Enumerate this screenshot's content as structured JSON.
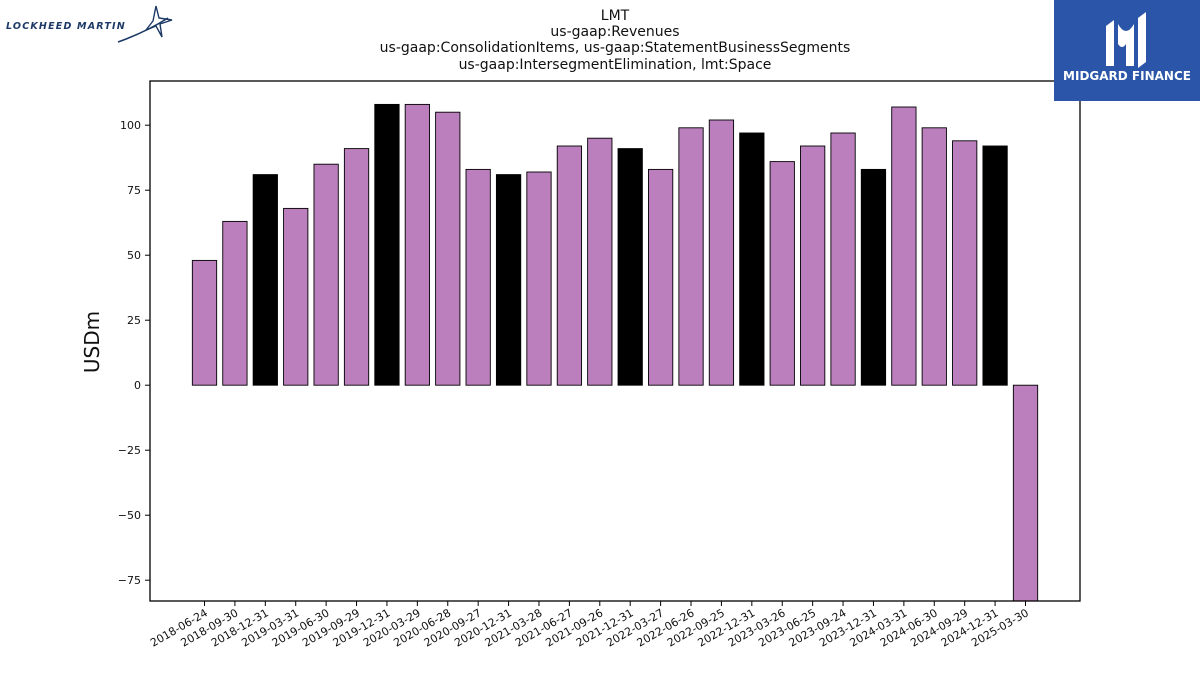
{
  "branding": {
    "left_logo_text": "LOCKHEED MARTIN",
    "left_logo_icon": "star-swoosh-icon",
    "right_logo_text": "MIDGARD FINANCE",
    "right_logo_icon": "midgard-m-icon",
    "right_logo_bg": "#2b55a8"
  },
  "chart_data": {
    "type": "bar",
    "title_lines": [
      "LMT",
      "us-gaap:Revenues",
      "us-gaap:ConsolidationItems, us-gaap:StatementBusinessSegments",
      "us-gaap:IntersegmentElimination, lmt:Space"
    ],
    "xlabel": "",
    "ylabel": "USDm",
    "ylim": [
      -83,
      117
    ],
    "yticks": [
      -75,
      -50,
      -25,
      0,
      25,
      50,
      75,
      100
    ],
    "grid": false,
    "colors": {
      "default": "#bb7fbd",
      "highlight": "#000000"
    },
    "categories": [
      "2018-06-24",
      "2018-09-30",
      "2018-12-31",
      "2019-03-31",
      "2019-06-30",
      "2019-09-29",
      "2019-12-31",
      "2020-03-29",
      "2020-06-28",
      "2020-09-27",
      "2020-12-31",
      "2021-03-28",
      "2021-06-27",
      "2021-09-26",
      "2021-12-31",
      "2022-03-27",
      "2022-06-26",
      "2022-09-25",
      "2022-12-31",
      "2023-03-26",
      "2023-06-25",
      "2023-09-24",
      "2023-12-31",
      "2024-03-31",
      "2024-06-30",
      "2024-09-29",
      "2024-12-31",
      "2025-03-30"
    ],
    "values": [
      48,
      63,
      81,
      68,
      85,
      91,
      108,
      108,
      105,
      83,
      81,
      82,
      92,
      95,
      91,
      83,
      99,
      102,
      97,
      86,
      92,
      97,
      83,
      107,
      99,
      94,
      92,
      -83
    ],
    "highlight": [
      false,
      false,
      true,
      false,
      false,
      false,
      true,
      false,
      false,
      false,
      true,
      false,
      false,
      false,
      true,
      false,
      false,
      false,
      true,
      false,
      false,
      false,
      true,
      false,
      false,
      false,
      true,
      false
    ]
  }
}
